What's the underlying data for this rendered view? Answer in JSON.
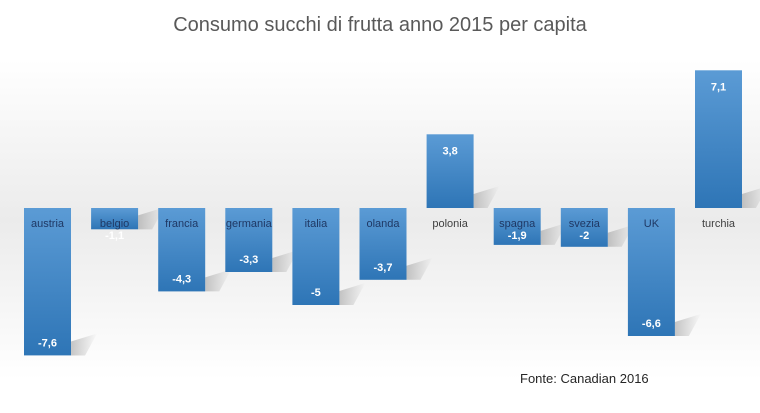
{
  "chart_data": {
    "type": "bar",
    "title": "Consumo succhi di frutta anno 2015 per capita",
    "categories": [
      "austria",
      "belgio",
      "francia",
      "germania",
      "italia",
      "olanda",
      "polonia",
      "spagna",
      "svezia",
      "UK",
      "turchia"
    ],
    "series": [
      {
        "values": [
          -7.6,
          -1.1,
          -4.3,
          -3.3,
          -5,
          -3.7,
          3.8,
          -1.9,
          -2,
          -6.6,
          7.1
        ],
        "value_labels": [
          "-7,6",
          "-1,1",
          "-4,3",
          "-3,3",
          "-5",
          "-3,7",
          "3,8",
          "-1,9",
          "-2",
          "-6,6",
          "7,1"
        ]
      }
    ],
    "ylim": [
      -8.2,
      8.2
    ],
    "grid": false,
    "legend": "none",
    "source": "Fonte: Canadian 2016",
    "colors": {
      "bar_light": "#5b9bd5",
      "bar_dark": "#2e75b6",
      "label_text": "#ffffff",
      "category_text": "#404040",
      "title_text": "#595959",
      "background_band": "#ebebeb"
    }
  }
}
